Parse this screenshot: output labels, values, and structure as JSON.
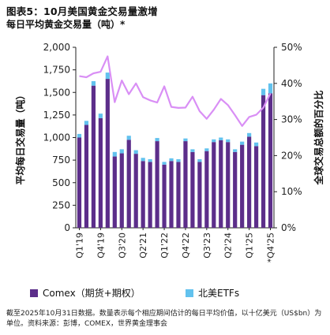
{
  "header": {
    "title": "图表5：10月美国黄金交易量激增",
    "subtitle": "每日平均黄金交易量（吨）*"
  },
  "legend": {
    "comex_label": "Comex（期货+期权）",
    "etf_label": "北美ETFs"
  },
  "note": {
    "text": "截至2025年10月31日数据。数量表示每个相应期间估计的每日平均价值，以十亿美元（US$bn）为单位。资料来源：彭博，COMEX，世界黄金理事会"
  },
  "colors": {
    "comex": "#5c2e8a",
    "etf": "#62c2ee",
    "share_line": "#d98ff5",
    "axis": "#222222"
  },
  "chart_data": {
    "type": "bar",
    "stacked": true,
    "title": "图表5：10月美国黄金交易量激增",
    "subtitle": "每日平均黄金交易量（吨）*",
    "ylabel_left": "平均每日交易量（吨）",
    "ylabel_right": "全球交易总额的百分比",
    "ylim_left": [
      0,
      2000
    ],
    "yticks_left": [
      "0",
      "250",
      "500",
      "750",
      "1,000",
      "1,250",
      "1,500",
      "1,750",
      "2,000"
    ],
    "ylim_right": [
      0,
      50
    ],
    "yticks_right": [
      "0%",
      "10%",
      "20%",
      "30%",
      "40%",
      "50%"
    ],
    "x_tick_labels": [
      "Q1'19",
      "Q4'19",
      "Q3'20",
      "Q2'21",
      "Q1'22",
      "Q4'22",
      "Q3'23",
      "Q2'24",
      "Q1'25",
      "*Q4'25"
    ],
    "categories": [
      "Q1'19",
      "Q2'19",
      "Q3'19",
      "Q4'19",
      "Q1'20",
      "Q2'20",
      "Q3'20",
      "Q4'20",
      "Q1'21",
      "Q2'21",
      "Q3'21",
      "Q4'21",
      "Q1'22",
      "Q2'22",
      "Q3'22",
      "Q4'22",
      "Q1'23",
      "Q2'23",
      "Q3'23",
      "Q4'23",
      "Q1'24",
      "Q2'24",
      "Q3'24",
      "Q4'24",
      "Q1'25",
      "Q2'25",
      "Q3'25",
      "*Q4'25"
    ],
    "series": [
      {
        "name": "Comex（期货+期权）",
        "kind": "bar",
        "axis": "left",
        "values": [
          1000,
          1140,
          1575,
          1215,
          1650,
          790,
          825,
          975,
          820,
          740,
          730,
          960,
          700,
          740,
          730,
          960,
          840,
          730,
          850,
          950,
          970,
          950,
          840,
          920,
          1010,
          905,
          1470,
          1490
        ]
      },
      {
        "name": "北美ETFs",
        "kind": "bar",
        "axis": "left",
        "values": [
          40,
          45,
          50,
          50,
          70,
          50,
          45,
          45,
          40,
          35,
          30,
          35,
          30,
          30,
          30,
          30,
          30,
          30,
          30,
          30,
          30,
          30,
          30,
          35,
          40,
          40,
          70,
          110
        ]
      },
      {
        "kind": "line",
        "axis": "right",
        "values": [
          42.0,
          41.7,
          42.8,
          43.2,
          47.5,
          34.8,
          40.8,
          37.0,
          40.0,
          36.2,
          35.3,
          34.7,
          39.2,
          33.5,
          33.2,
          33.3,
          36.3,
          32.3,
          30.2,
          32.7,
          35.7,
          34.0,
          31.2,
          28.2,
          30.7,
          31.3,
          33.3,
          37.2
        ]
      }
    ],
    "grid": false
  }
}
